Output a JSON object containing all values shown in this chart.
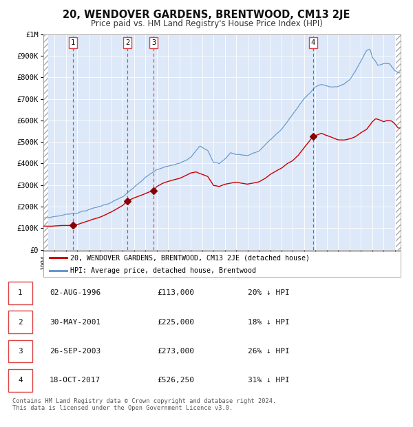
{
  "title": "20, WENDOVER GARDENS, BRENTWOOD, CM13 2JE",
  "subtitle": "Price paid vs. HM Land Registry's House Price Index (HPI)",
  "ylabel_ticks": [
    "£0",
    "£100K",
    "£200K",
    "£300K",
    "£400K",
    "£500K",
    "£600K",
    "£700K",
    "£800K",
    "£900K",
    "£1M"
  ],
  "ytick_values": [
    0,
    100000,
    200000,
    300000,
    400000,
    500000,
    600000,
    700000,
    800000,
    900000,
    1000000
  ],
  "ylim": [
    0,
    1000000
  ],
  "xlim_start": 1994.0,
  "xlim_end": 2025.5,
  "sale_dates": [
    1996.585,
    2001.413,
    2003.733,
    2017.792
  ],
  "sale_prices": [
    113000,
    225000,
    273000,
    526250
  ],
  "sale_labels": [
    "1",
    "2",
    "3",
    "4"
  ],
  "red_line_color": "#cc0000",
  "blue_line_color": "#6699cc",
  "sale_marker_color": "#880000",
  "vline_color": "#dd4444",
  "background_color": "#dde8f8",
  "plot_bg_color": "#dde8f8",
  "legend_label_red": "20, WENDOVER GARDENS, BRENTWOOD, CM13 2JE (detached house)",
  "legend_label_blue": "HPI: Average price, detached house, Brentwood",
  "table_rows": [
    [
      "1",
      "02-AUG-1996",
      "£113,000",
      "20% ↓ HPI"
    ],
    [
      "2",
      "30-MAY-2001",
      "£225,000",
      "18% ↓ HPI"
    ],
    [
      "3",
      "26-SEP-2003",
      "£273,000",
      "26% ↓ HPI"
    ],
    [
      "4",
      "18-OCT-2017",
      "£526,250",
      "31% ↓ HPI"
    ]
  ],
  "footer": "Contains HM Land Registry data © Crown copyright and database right 2024.\nThis data is licensed under the Open Government Licence v3.0.",
  "hatch_color": "#bbbbbb"
}
